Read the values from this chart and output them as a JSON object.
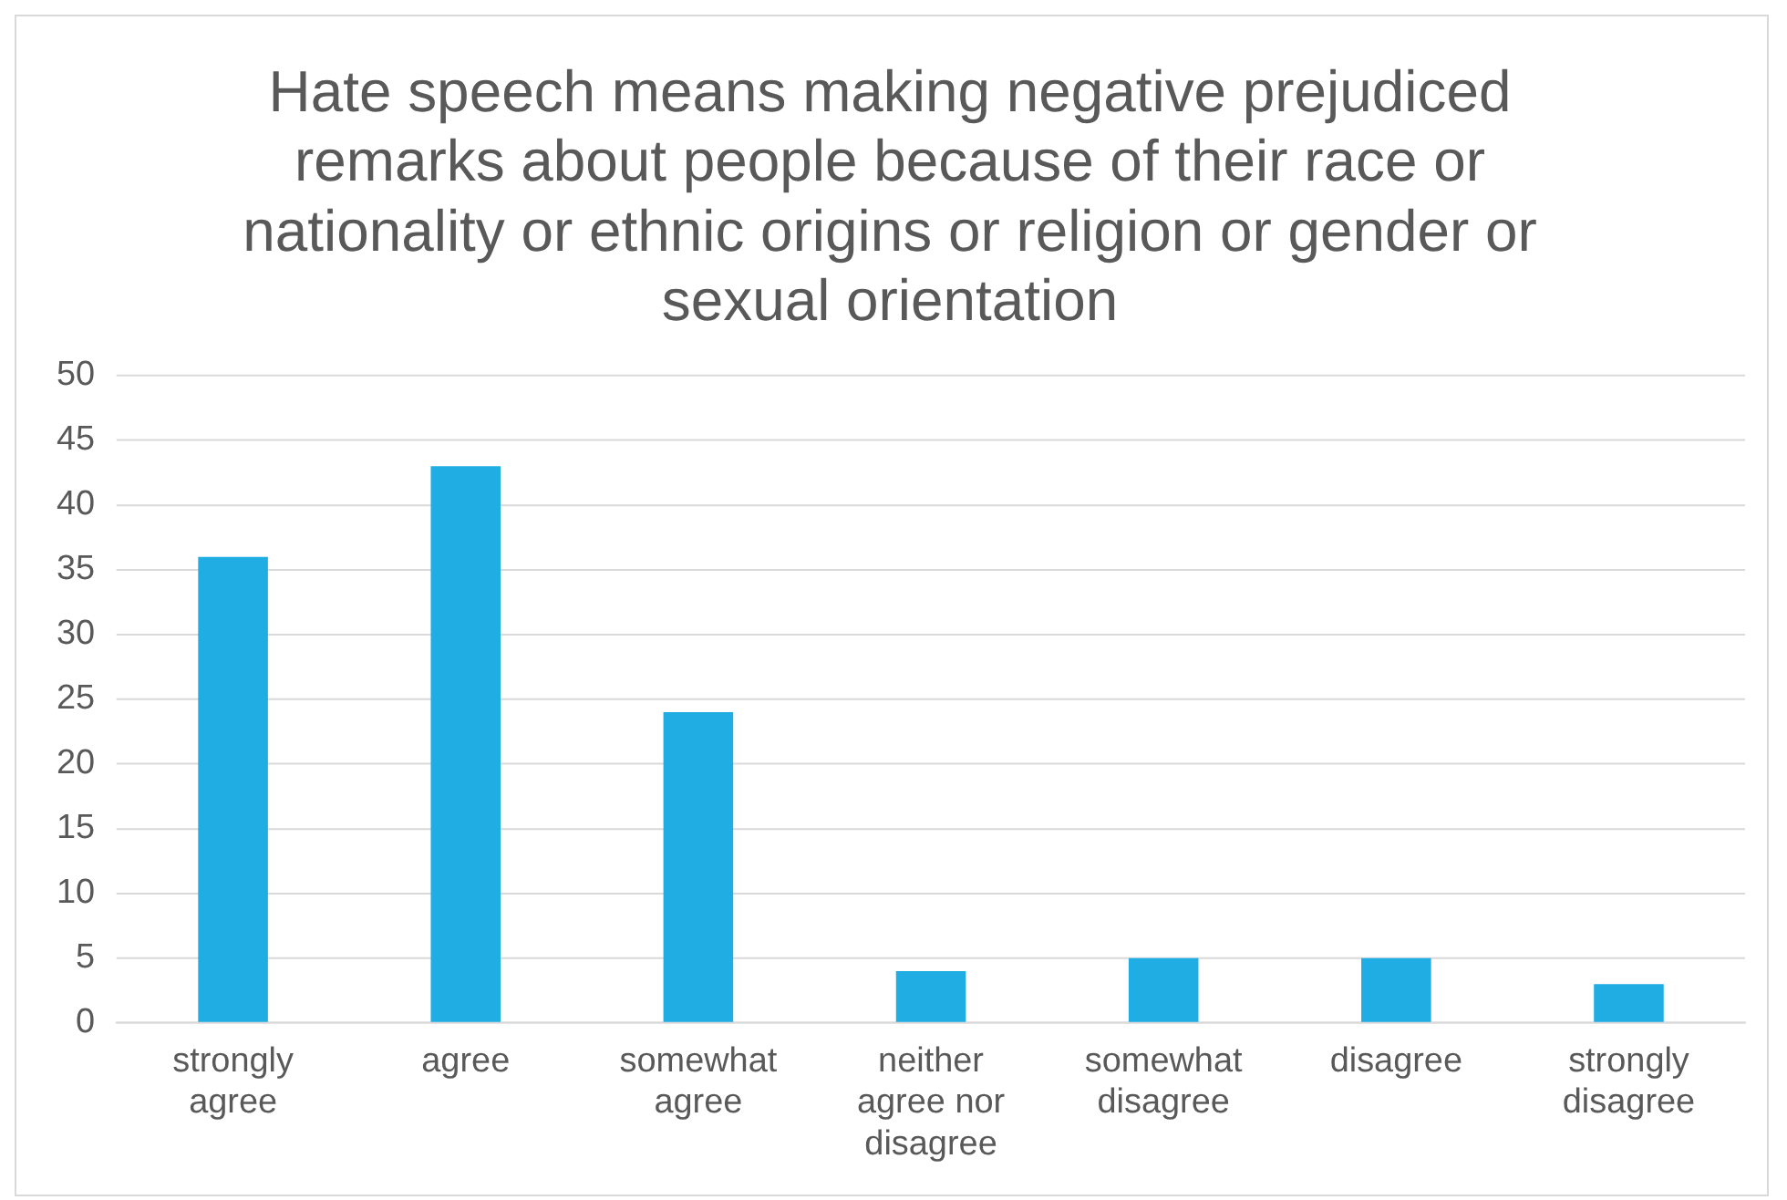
{
  "chart_data": {
    "type": "bar",
    "title": "Hate speech means making negative prejudiced remarks about people because of their race or nationality or ethnic origins or religion or gender or sexual orientation",
    "categories": [
      "strongly agree",
      "agree",
      "somewhat agree",
      "neither agree nor disagree",
      "somewhat disagree",
      "disagree",
      "strongly disagree"
    ],
    "values": [
      36,
      43,
      24,
      4,
      5,
      5,
      3
    ],
    "color": "#1fade4",
    "ylim": [
      0,
      50
    ],
    "yticks": [
      0,
      5,
      10,
      15,
      20,
      25,
      30,
      35,
      40,
      45,
      50
    ],
    "grid": "y"
  }
}
